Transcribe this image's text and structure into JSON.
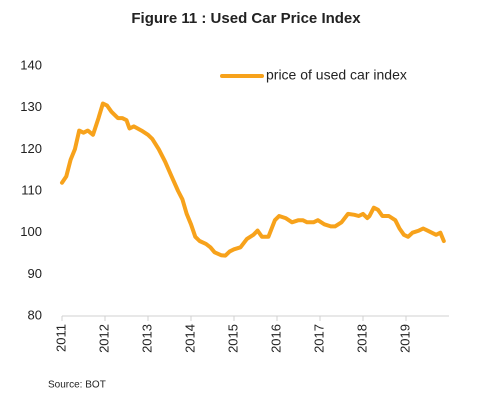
{
  "chart_data": {
    "type": "line",
    "title": "Figure 11 :  Used Car Price Index",
    "source": "Source: BOT",
    "x": [
      2011.0,
      2011.1,
      2011.2,
      2011.3,
      2011.4,
      2011.5,
      2011.6,
      2011.72,
      2011.85,
      2011.95,
      2012.05,
      2012.15,
      2012.3,
      2012.4,
      2012.5,
      2012.57,
      2012.67,
      2012.85,
      2013.0,
      2013.1,
      2013.25,
      2013.4,
      2013.55,
      2013.7,
      2013.8,
      2013.9,
      2014.0,
      2014.1,
      2014.2,
      2014.35,
      2014.45,
      2014.55,
      2014.7,
      2014.8,
      2014.9,
      2015.0,
      2015.15,
      2015.3,
      2015.45,
      2015.55,
      2015.65,
      2015.8,
      2015.95,
      2016.05,
      2016.2,
      2016.35,
      2016.5,
      2016.6,
      2016.7,
      2016.85,
      2016.95,
      2017.1,
      2017.25,
      2017.35,
      2017.5,
      2017.65,
      2017.8,
      2017.9,
      2018.0,
      2018.1,
      2018.15,
      2018.25,
      2018.35,
      2018.45,
      2018.6,
      2018.75,
      2018.85,
      2018.95,
      2019.05,
      2019.15,
      2019.3,
      2019.4,
      2019.5,
      2019.6,
      2019.7,
      2019.8,
      2019.88
    ],
    "series": [
      {
        "name": "price of used car index",
        "color": "#f7a21b",
        "values": [
          112,
          113.5,
          117.5,
          120,
          124.5,
          124,
          124.5,
          123.5,
          127.5,
          131,
          130.5,
          129,
          127.5,
          127.5,
          127,
          125,
          125.5,
          124.5,
          123.5,
          122.5,
          120,
          117,
          113.5,
          110,
          108,
          104.5,
          102,
          99,
          98,
          97.3,
          96.5,
          95.3,
          94.6,
          94.5,
          95.5,
          96,
          96.5,
          98.5,
          99.5,
          100.5,
          99,
          99,
          103,
          104,
          103.5,
          102.5,
          103,
          103,
          102.5,
          102.5,
          103,
          102,
          101.5,
          101.5,
          102.5,
          104.5,
          104.3,
          104,
          104.5,
          103.5,
          104,
          106,
          105.5,
          104,
          104,
          103,
          101,
          99.5,
          99,
          100,
          100.5,
          101,
          100.5,
          100,
          99.5,
          100,
          98
        ]
      }
    ],
    "xlim": [
      2011,
      2020
    ],
    "xticks": [
      2011,
      2012,
      2013,
      2014,
      2015,
      2016,
      2017,
      2018,
      2019
    ],
    "ylim": [
      80,
      140
    ],
    "yticks": [
      80,
      90,
      100,
      110,
      120,
      130,
      140
    ]
  }
}
